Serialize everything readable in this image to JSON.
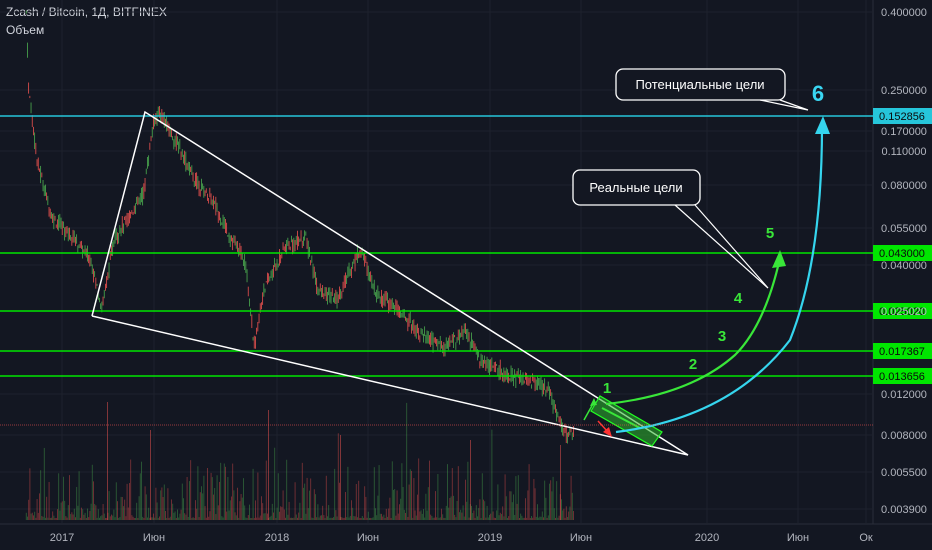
{
  "header": {
    "title": "Zcash / Bitcoin, 1Д, BITFINEX",
    "volume_label": "Объем"
  },
  "annotations": {
    "potential_targets": "Потенциальные цели",
    "real_targets": "Реальные цели",
    "wave_labels": [
      "1",
      "2",
      "3",
      "4",
      "5"
    ],
    "big_target": "6"
  },
  "colors": {
    "background": "#131722",
    "green_level": "#00e600",
    "cyan_level": "#26c6da",
    "up_candle": "#4caf50",
    "down_candle": "#ef5350",
    "wave_text": "#39e639",
    "target_text": "#3ad6f2"
  },
  "chart_data": {
    "type": "candlestick",
    "title": "Zcash / Bitcoin, 1Д, BITFINEX",
    "scale": "log",
    "y_tick_labels": [
      "0.400000",
      "0.250000",
      "0.170000",
      "0.110000",
      "0.080000",
      "0.055000",
      "0.040000",
      "0.025020",
      "0.012000",
      "0.008000",
      "0.005500",
      "0.003900"
    ],
    "x_tick_labels": [
      "2017",
      "Июн",
      "2018",
      "Июн",
      "2019",
      "Июн",
      "2020",
      "Июн",
      "Ок"
    ],
    "horizontal_levels": [
      {
        "value": "0.152856",
        "color": "cyan"
      },
      {
        "value": "0.043000",
        "color": "green"
      },
      {
        "value": "0.025020",
        "color": "green"
      },
      {
        "value": "0.017367",
        "color": "green"
      },
      {
        "value": "0.013656",
        "color": "green"
      }
    ],
    "price_path": [
      [
        "2016-11-01",
        0.4
      ],
      [
        "2016-11-05",
        0.2
      ],
      [
        "2016-11-20",
        0.1
      ],
      [
        "2016-12-15",
        0.06
      ],
      [
        "2017-01-20",
        0.05
      ],
      [
        "2017-02-20",
        0.04
      ],
      [
        "2017-03-10",
        0.026
      ],
      [
        "2017-04-01",
        0.05
      ],
      [
        "2017-04-25",
        0.06
      ],
      [
        "2017-05-20",
        0.075
      ],
      [
        "2017-06-05",
        0.14
      ],
      [
        "2017-06-15",
        0.16
      ],
      [
        "2017-07-15",
        0.12
      ],
      [
        "2017-08-15",
        0.085
      ],
      [
        "2017-09-15",
        0.07
      ],
      [
        "2017-10-15",
        0.05
      ],
      [
        "2017-11-10",
        0.04
      ],
      [
        "2017-11-25",
        0.018
      ],
      [
        "2017-12-10",
        0.03
      ],
      [
        "2018-01-15",
        0.045
      ],
      [
        "2018-02-20",
        0.05
      ],
      [
        "2018-03-15",
        0.03
      ],
      [
        "2018-04-15",
        0.028
      ],
      [
        "2018-05-25",
        0.045
      ],
      [
        "2018-06-20",
        0.03
      ],
      [
        "2018-08-01",
        0.025
      ],
      [
        "2018-09-10",
        0.02
      ],
      [
        "2018-10-15",
        0.018
      ],
      [
        "2018-11-20",
        0.021
      ],
      [
        "2018-12-15",
        0.016
      ],
      [
        "2019-02-01",
        0.014
      ],
      [
        "2019-03-20",
        0.013
      ],
      [
        "2019-04-10",
        0.012
      ],
      [
        "2019-05-10",
        0.008
      ],
      [
        "2019-05-25",
        0.0085
      ]
    ],
    "projections": {
      "real_targets_path": [
        0.0105,
        0.017,
        0.025,
        0.035,
        0.04
      ],
      "potential_target": 0.152856
    }
  }
}
